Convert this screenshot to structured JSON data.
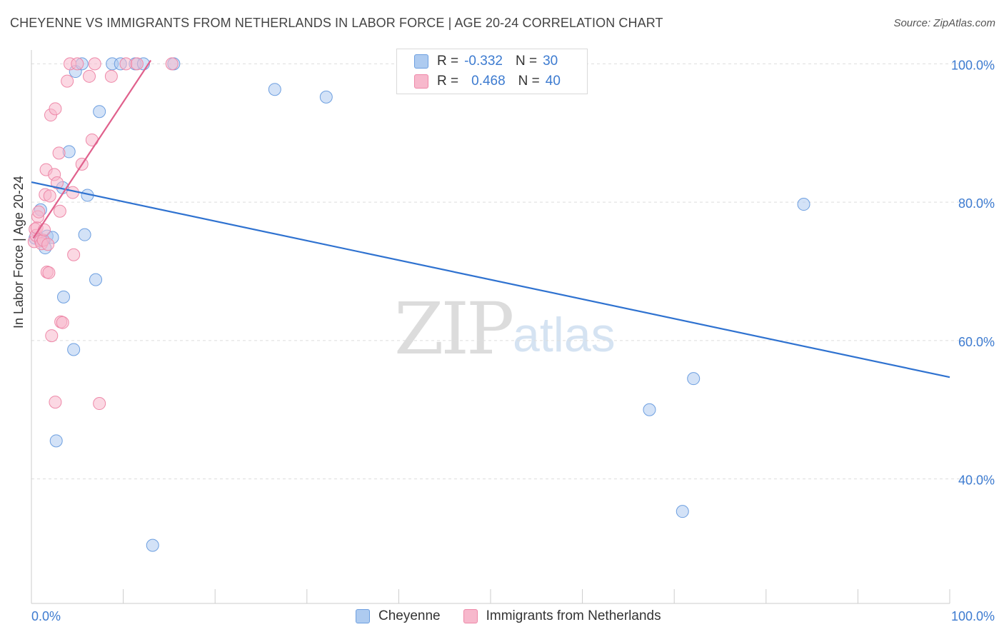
{
  "title": "CHEYENNE VS IMMIGRANTS FROM NETHERLANDS IN LABOR FORCE | AGE 20-24 CORRELATION CHART",
  "source": "Source: ZipAtlas.com",
  "watermark": {
    "part1": "ZIP",
    "part2": "atlas"
  },
  "legend": {
    "cheyenne": {
      "r_label": "R =",
      "r_value": "-0.332",
      "n_label": "N =",
      "n_value": "30"
    },
    "netherlands": {
      "r_label": "R =",
      "r_value": "0.468",
      "n_label": "N =",
      "n_value": "40"
    }
  },
  "bottom_legend": {
    "cheyenne": "Cheyenne",
    "netherlands": "Immigrants from Netherlands"
  },
  "colors": {
    "cheyenne_fill": "#aecbf0",
    "cheyenne_stroke": "#6d9fe0",
    "cheyenne_line": "#2f72d0",
    "netherlands_fill": "#f7b8cc",
    "netherlands_stroke": "#ee88a8",
    "netherlands_line": "#e0608c",
    "axis_text": "#3d7bd0",
    "grid": "#dddddd"
  },
  "chart_data": {
    "type": "scatter",
    "title": "CHEYENNE VS IMMIGRANTS FROM NETHERLANDS IN LABOR FORCE | AGE 20-24 CORRELATION CHART",
    "xlabel": "",
    "ylabel": "In Labor Force | Age 20-24",
    "xlim": [
      0,
      100
    ],
    "ylim": [
      22,
      102
    ],
    "x_tick_labels": [
      "0.0%",
      "100.0%"
    ],
    "y_ticks": [
      40,
      60,
      80,
      100
    ],
    "y_tick_labels": [
      "40.0%",
      "60.0%",
      "80.0%",
      "100.0%"
    ],
    "series": [
      {
        "name": "Cheyenne",
        "points": [
          [
            0.4,
            74.8
          ],
          [
            1.0,
            78.9
          ],
          [
            1.2,
            74.5
          ],
          [
            1.5,
            73.4
          ],
          [
            1.7,
            75.1
          ],
          [
            2.3,
            74.9
          ],
          [
            2.7,
            45.5
          ],
          [
            3.4,
            82.1
          ],
          [
            3.5,
            66.3
          ],
          [
            4.1,
            87.3
          ],
          [
            4.6,
            58.7
          ],
          [
            4.8,
            98.9
          ],
          [
            5.5,
            100.0
          ],
          [
            5.8,
            75.3
          ],
          [
            6.1,
            81.0
          ],
          [
            7.0,
            68.8
          ],
          [
            7.4,
            93.1
          ],
          [
            8.8,
            100.0
          ],
          [
            9.7,
            100.0
          ],
          [
            11.3,
            100.0
          ],
          [
            12.2,
            100.0
          ],
          [
            13.2,
            30.4
          ],
          [
            15.5,
            100.0
          ],
          [
            26.5,
            96.3
          ],
          [
            32.1,
            95.2
          ],
          [
            67.3,
            50.0
          ],
          [
            72.1,
            54.5
          ],
          [
            70.9,
            35.3
          ],
          [
            84.1,
            79.7
          ],
          [
            1.0,
            74.6
          ]
        ],
        "trend": {
          "x": [
            0,
            100
          ],
          "y": [
            82.9,
            54.7
          ]
        }
      },
      {
        "name": "Immigrants from Netherlands",
        "points": [
          [
            0.3,
            74.3
          ],
          [
            0.4,
            76.1
          ],
          [
            0.5,
            75.2
          ],
          [
            0.6,
            76.3
          ],
          [
            0.7,
            77.9
          ],
          [
            0.8,
            78.6
          ],
          [
            1.0,
            74.4
          ],
          [
            1.1,
            74.0
          ],
          [
            1.3,
            74.5
          ],
          [
            1.4,
            76.0
          ],
          [
            1.5,
            81.1
          ],
          [
            1.6,
            84.7
          ],
          [
            1.7,
            69.9
          ],
          [
            1.8,
            73.9
          ],
          [
            1.9,
            69.8
          ],
          [
            2.0,
            80.9
          ],
          [
            2.1,
            92.6
          ],
          [
            2.2,
            60.7
          ],
          [
            2.5,
            84.0
          ],
          [
            2.6,
            93.5
          ],
          [
            2.6,
            51.1
          ],
          [
            2.8,
            82.8
          ],
          [
            3.0,
            87.1
          ],
          [
            3.1,
            78.7
          ],
          [
            3.2,
            62.7
          ],
          [
            3.4,
            62.6
          ],
          [
            3.9,
            97.5
          ],
          [
            4.2,
            100.0
          ],
          [
            4.5,
            81.4
          ],
          [
            4.6,
            72.4
          ],
          [
            5.0,
            100.0
          ],
          [
            5.5,
            85.5
          ],
          [
            6.3,
            98.2
          ],
          [
            6.6,
            89.0
          ],
          [
            6.9,
            100.0
          ],
          [
            7.4,
            50.9
          ],
          [
            8.7,
            98.2
          ],
          [
            10.3,
            100.0
          ],
          [
            11.5,
            100.0
          ],
          [
            15.3,
            100.0
          ]
        ],
        "trend": {
          "x": [
            0.2,
            13.0
          ],
          "y": [
            74.8,
            100.5
          ]
        }
      }
    ]
  }
}
